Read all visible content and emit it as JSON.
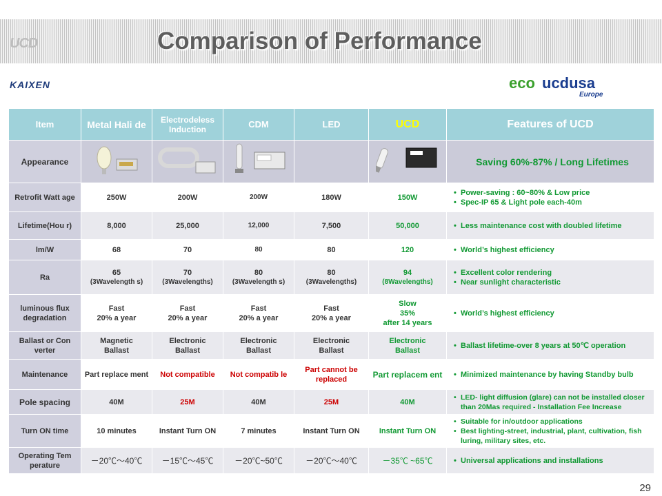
{
  "title": "Comparison of Performance",
  "page_number": "29",
  "logos": {
    "ucd_mark": "UCD",
    "kaixen": "KAIXEN",
    "eco_part1": "eco",
    "eco_part2": "ucdusa",
    "eco_region": "Europe"
  },
  "headers": {
    "item": "Item",
    "metal_halide": "Metal Hali de",
    "electrodeless": "Electrodeless Induction",
    "cdm": "CDM",
    "led": "LED",
    "ucd": "UCD",
    "features": "Features of UCD"
  },
  "rows": {
    "appearance": {
      "label": "Appearance",
      "feature": "Saving 60%-87% / Long Lifetimes"
    },
    "retrofit": {
      "label": "Retrofit Watt age",
      "mh": "250W",
      "ei": "200W",
      "cdm": "200W",
      "led": "180W",
      "ucd": "150W",
      "features": [
        "Power-saving : 60~80% & Low price",
        "Spec-IP 65 & Light pole each-40m"
      ]
    },
    "lifetime": {
      "label": "Lifetime(Hou r)",
      "mh": "8,000",
      "ei": "25,000",
      "cdm": "12,000",
      "led": "7,500",
      "ucd": "50,000",
      "features": [
        "Less maintenance cost with doubled lifetime"
      ]
    },
    "lmw": {
      "label": "lm/W",
      "mh": "68",
      "ei": "70",
      "cdm": "80",
      "led": "80",
      "ucd": "120",
      "features": [
        "World’s highest efficiency"
      ]
    },
    "ra": {
      "label": "Ra",
      "mh": "65",
      "mh_sub": "(3Wavelength s)",
      "ei": "70",
      "ei_sub": "(3Wavelengths)",
      "cdm": "80",
      "cdm_sub": "(3Wavelength s)",
      "led": "80",
      "led_sub": "(3Wavelengths)",
      "ucd": "94",
      "ucd_sub": "(8Wavelengths)",
      "features": [
        "Excellent color rendering",
        "Near sunlight characteristic"
      ]
    },
    "flux": {
      "label": "luminous flux degradation",
      "mh": "Fast",
      "mh_2": "20% a year",
      "ei": "Fast",
      "ei_2": "20% a year",
      "cdm": "Fast",
      "cdm_2": "20% a year",
      "led": "Fast",
      "led_2": "20% a year",
      "ucd": "Slow",
      "ucd_2": "35%",
      "ucd_3": "after 14 years",
      "features": [
        "World’s highest efficiency"
      ]
    },
    "ballast": {
      "label": "Ballast or Con verter",
      "mh": "Magnetic",
      "mh_2": "Ballast",
      "ei": "Electronic",
      "ei_2": "Ballast",
      "cdm": "Electronic",
      "cdm_2": "Ballast",
      "led": "Electronic",
      "led_2": "Ballast",
      "ucd": "Electronic",
      "ucd_2": "Ballast",
      "features": [
        "Ballast lifetime-over 8 years at 50℃ operation"
      ]
    },
    "maintenance": {
      "label": "Maintenance",
      "mh": "Part replace ment",
      "ei": "Not compatible",
      "cdm": "Not compatib le",
      "led": "Part cannot be replaced",
      "ucd": "Part replacem ent",
      "features": [
        "Minimized maintenance by having Standby bulb"
      ]
    },
    "pole": {
      "label": "Pole spacing",
      "mh": "40M",
      "ei": "25M",
      "cdm": "40M",
      "led": "25M",
      "ucd": "40M",
      "features": [
        "LED- light diffusion (glare) can not be installed closer than 20Mas required - Installation Fee Increase"
      ]
    },
    "turnon": {
      "label": "Turn ON time",
      "mh": "10 minutes",
      "ei": "Instant Turn ON",
      "cdm": "7 minutes",
      "led": "Instant Turn ON",
      "ucd": "Instant Turn ON",
      "features": [
        "Suitable for in/outdoor applications",
        "Best lighting-street, industrial,  plant, cultivation, fish luring, military sites, etc."
      ]
    },
    "temp": {
      "label": "Operating Tem perature",
      "mh": "－20℃～40℃",
      "ei": "－15℃～45℃",
      "cdm": "－20℃~50℃",
      "led": "－20℃～40℃",
      "ucd": "－35℃ ~65℃",
      "features": [
        "Universal applications and installations"
      ]
    }
  }
}
